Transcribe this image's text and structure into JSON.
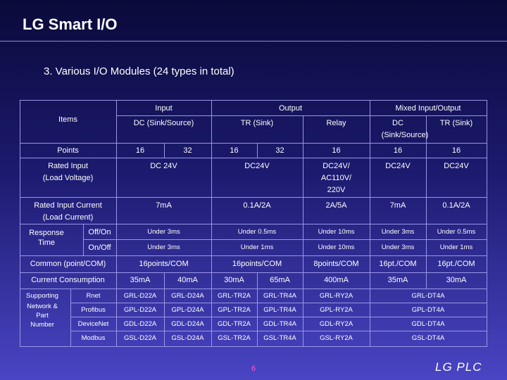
{
  "slide": {
    "title": "LG Smart I/O",
    "subtitle": "3. Various I/O Modules (24 types in total)",
    "page_number": "6",
    "brand": "LG PLC"
  },
  "table": {
    "header": {
      "input": "Input",
      "output": "Output",
      "mixed": "Mixed Input/Output",
      "items": "Items",
      "dc_sink_source": "DC (Sink/Source)",
      "tr_sink": "TR (Sink)",
      "relay": "Relay",
      "mixed_dc_l1": "DC",
      "mixed_dc_l2": "(Sink/Source)",
      "mixed_tr": "TR (Sink)"
    },
    "points": {
      "label": "Points",
      "in_16": "16",
      "in_32": "32",
      "tr_16": "16",
      "tr_32": "32",
      "relay": "16",
      "mixed_dc": "16",
      "mixed_tr": "16"
    },
    "voltage": {
      "label_l1": "Rated Input",
      "label_l2": "(Load Voltage)",
      "input": "DC 24V",
      "tr": "DC24V",
      "relay_l1": "DC24V/",
      "relay_l2": "AC110V/",
      "relay_l3": "220V",
      "mixed_dc": "DC24V",
      "mixed_tr": "DC24V"
    },
    "current": {
      "label_l1": "Rated Input Current",
      "label_l2": "(Load Current)",
      "input": "7mA",
      "tr": "0.1A/2A",
      "relay": "2A/5A",
      "mixed_dc": "7mA",
      "mixed_tr": "0.1A/2A"
    },
    "response": {
      "label_l1": "Response",
      "label_l2": "Time",
      "off_on": {
        "label": "Off/On",
        "input": "Under 3ms",
        "tr": "Under 0.5ms",
        "relay": "Under 10ms",
        "mixed_dc": "Under 3ms",
        "mixed_tr": "Under 0.5ms"
      },
      "on_off": {
        "label": "On/Off",
        "input": "Under 3ms",
        "tr": "Under 1ms",
        "relay": "Under 10ms",
        "mixed_dc": "Under 3ms",
        "mixed_tr": "Under 1ms"
      }
    },
    "common": {
      "label": "Common (point/COM)",
      "input": "16points/COM",
      "tr": "16points/COM",
      "relay": "8points/COM",
      "mixed_dc": "16pt./COM",
      "mixed_tr": "16pt./COM"
    },
    "consumption": {
      "label": "Current Consumption",
      "in_16": "35mA",
      "in_32": "40mA",
      "tr_16": "30mA",
      "tr_32": "65mA",
      "relay": "400mA",
      "mixed_dc": "35mA",
      "mixed_tr": "30mA"
    },
    "network": {
      "label_l1": "Supporting",
      "label_l2": "Network &",
      "label_l3": "Part",
      "label_l4": "Number",
      "rows": [
        {
          "net": "Rnet",
          "in16": "GRL-D22A",
          "in32": "GRL-D24A",
          "tr16": "GRL-TR2A",
          "tr32": "GRL-TR4A",
          "relay": "GRL-RY2A",
          "mixed": "GRL-DT4A"
        },
        {
          "net": "Profibus",
          "in16": "GPL-D22A",
          "in32": "GPL-D24A",
          "tr16": "GPL-TR2A",
          "tr32": "GPL-TR4A",
          "relay": "GPL-RY2A",
          "mixed": "GPL-DT4A"
        },
        {
          "net": "DeviceNet",
          "in16": "GDL-D22A",
          "in32": "GDL-D24A",
          "tr16": "GDL-TR2A",
          "tr32": "GDL-TR4A",
          "relay": "GDL-RY2A",
          "mixed": "GDL-DT4A"
        },
        {
          "net": "Modbus",
          "in16": "GSL-D22A",
          "in32": "GSL-D24A",
          "tr16": "GSL-TR2A",
          "tr32": "GSL-TR4A",
          "relay": "GSL-RY2A",
          "mixed": "GSL-DT4A"
        }
      ]
    }
  }
}
